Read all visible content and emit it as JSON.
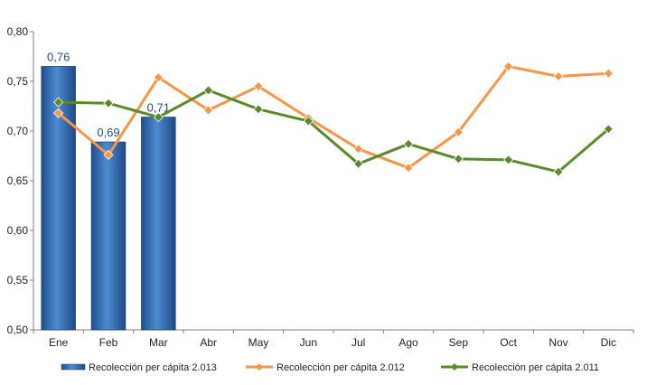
{
  "chart_data": {
    "type": "bar+line",
    "categories": [
      "Ene",
      "Feb",
      "Mar",
      "Abr",
      "May",
      "Jun",
      "Jul",
      "Ago",
      "Sep",
      "Oct",
      "Nov",
      "Dic"
    ],
    "ylim": [
      0.5,
      0.8
    ],
    "yticks": [
      "0,50",
      "0,55",
      "0,60",
      "0,65",
      "0,70",
      "0,75",
      "0,80"
    ],
    "ytick_values": [
      0.5,
      0.55,
      0.6,
      0.65,
      0.7,
      0.75,
      0.8
    ],
    "grid": false,
    "legend_position": "bottom",
    "bar_series": {
      "name": "Recolección per cápita 2.013",
      "values": [
        0.765,
        0.689,
        0.714
      ],
      "labels": [
        "0,76",
        "0,69",
        "0,71"
      ],
      "color": "#2E6DB4"
    },
    "line_series": [
      {
        "name": "Recolección per cápita 2.012",
        "values": [
          0.718,
          0.676,
          0.754,
          0.721,
          0.745,
          0.713,
          0.682,
          0.663,
          0.699,
          0.765,
          0.755,
          0.758
        ],
        "color": "#F79646"
      },
      {
        "name": "Recolección per cápita 2.011",
        "values": [
          0.729,
          0.728,
          0.714,
          0.741,
          0.722,
          0.71,
          0.667,
          0.687,
          0.672,
          0.671,
          0.659,
          0.702
        ],
        "color": "#5B8A2A"
      }
    ]
  }
}
